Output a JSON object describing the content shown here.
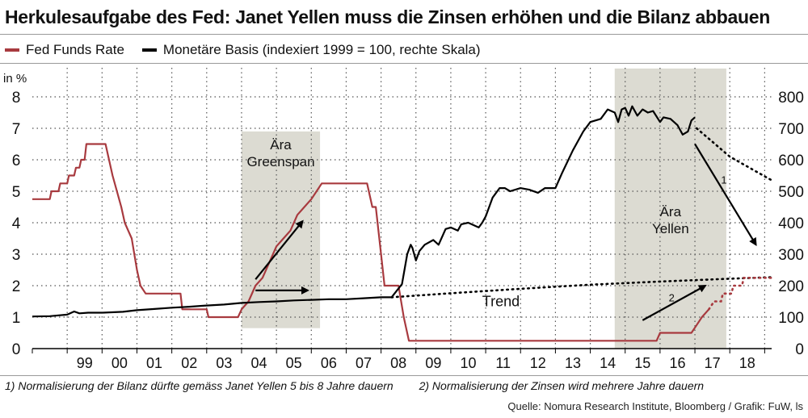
{
  "title": "Herkulesaufgabe des Fed: Janet Yellen muss die Zinsen erhöhen und die Bilanz abbauen",
  "legend": {
    "fed_funds": "Fed Funds Rate",
    "monetary_base": "Monetäre Basis (indexiert 1999 = 100, rechte Skala)"
  },
  "colors": {
    "fed_funds": "#a83a3f",
    "monetary_base": "#000000",
    "shade": "#dcdbd2"
  },
  "notes": {
    "note1": "1) Normalisierung der Bilanz dürfte gemäss Janet Yellen 5 bis 8 Jahre dauern",
    "note2": "2) Normalisierung der Zinsen wird mehrere Jahre dauern"
  },
  "source": "Quelle:  Nomura Research Institute, Bloomberg / Grafik: FuW, ls",
  "chart_data": {
    "type": "line",
    "left_axis": {
      "unit_label": "in %",
      "range": [
        0,
        8
      ],
      "ticks": [
        "0",
        "1",
        "2",
        "3",
        "4",
        "5",
        "6",
        "7",
        "8"
      ]
    },
    "right_axis": {
      "range": [
        0,
        800
      ],
      "ticks": [
        "0",
        "100",
        "200",
        "300",
        "400",
        "500",
        "600",
        "700",
        "800"
      ]
    },
    "x_axis": {
      "range": [
        1998.0,
        2019.2
      ],
      "labels": [
        "99",
        "00",
        "01",
        "02",
        "03",
        "04",
        "05",
        "06",
        "07",
        "08",
        "09",
        "10",
        "11",
        "12",
        "13",
        "14",
        "15",
        "16",
        "17",
        "18"
      ]
    },
    "shaded_periods": [
      {
        "label_line1": "Ära",
        "label_line2": "Greenspan",
        "start": 2004.0,
        "end": 2006.25,
        "bottom": 0.65,
        "top": 6.9
      },
      {
        "label_line1": "Ära",
        "label_line2": "Yellen",
        "start": 2014.7,
        "end": 2017.9,
        "bottom": 0,
        "top": 8.9
      }
    ],
    "series": [
      {
        "name": "Fed Funds Rate",
        "axis": "left",
        "points": [
          [
            1998.0,
            4.75
          ],
          [
            1998.5,
            4.75
          ],
          [
            1998.55,
            5.0
          ],
          [
            1998.75,
            5.0
          ],
          [
            1998.8,
            5.25
          ],
          [
            1999.0,
            5.25
          ],
          [
            1999.05,
            5.5
          ],
          [
            1999.2,
            5.5
          ],
          [
            1999.25,
            5.75
          ],
          [
            1999.35,
            5.75
          ],
          [
            1999.4,
            6.0
          ],
          [
            1999.5,
            6.0
          ],
          [
            1999.55,
            6.5
          ],
          [
            1999.6,
            6.5
          ],
          [
            2000.1,
            6.5
          ],
          [
            2000.3,
            5.5
          ],
          [
            2000.55,
            4.5
          ],
          [
            2000.65,
            4.0
          ],
          [
            2000.75,
            3.75
          ],
          [
            2000.85,
            3.5
          ],
          [
            2001.0,
            2.5
          ],
          [
            2001.1,
            2.0
          ],
          [
            2001.25,
            1.75
          ],
          [
            2002.25,
            1.75
          ],
          [
            2002.3,
            1.25
          ],
          [
            2003.0,
            1.25
          ],
          [
            2003.05,
            1.0
          ],
          [
            2003.9,
            1.0
          ],
          [
            2004.0,
            1.25
          ],
          [
            2004.2,
            1.5
          ],
          [
            2004.4,
            2.0
          ],
          [
            2004.6,
            2.25
          ],
          [
            2004.8,
            2.75
          ],
          [
            2005.0,
            3.25
          ],
          [
            2005.2,
            3.5
          ],
          [
            2005.4,
            3.75
          ],
          [
            2005.6,
            4.25
          ],
          [
            2005.8,
            4.5
          ],
          [
            2006.0,
            4.75
          ],
          [
            2006.15,
            5.0
          ],
          [
            2006.3,
            5.25
          ],
          [
            2007.6,
            5.25
          ],
          [
            2007.75,
            4.5
          ],
          [
            2007.85,
            4.5
          ],
          [
            2008.0,
            3.0
          ],
          [
            2008.1,
            2.0
          ],
          [
            2008.5,
            2.0
          ],
          [
            2008.65,
            1.0
          ],
          [
            2008.8,
            0.25
          ],
          [
            2015.9,
            0.25
          ],
          [
            2016.0,
            0.5
          ],
          [
            2016.9,
            0.5
          ],
          [
            2017.05,
            0.75
          ],
          [
            2017.2,
            1.0
          ],
          [
            2017.4,
            1.25
          ]
        ]
      },
      {
        "name": "Monetäre Basis",
        "axis": "right",
        "points": [
          [
            1998.0,
            102
          ],
          [
            1998.5,
            103
          ],
          [
            1999.0,
            108
          ],
          [
            1999.2,
            118
          ],
          [
            1999.35,
            112
          ],
          [
            1999.6,
            114
          ],
          [
            2000.0,
            114
          ],
          [
            2000.6,
            117
          ],
          [
            2001.0,
            122
          ],
          [
            2001.5,
            126
          ],
          [
            2002.0,
            130
          ],
          [
            2002.5,
            133
          ],
          [
            2003.0,
            137
          ],
          [
            2003.5,
            140
          ],
          [
            2004.0,
            145
          ],
          [
            2004.5,
            148
          ],
          [
            2005.0,
            150
          ],
          [
            2005.5,
            153
          ],
          [
            2006.0,
            155
          ],
          [
            2006.5,
            157
          ],
          [
            2007.0,
            157
          ],
          [
            2007.5,
            160
          ],
          [
            2008.0,
            163
          ],
          [
            2008.3,
            163
          ],
          [
            2008.6,
            205
          ],
          [
            2008.75,
            300
          ],
          [
            2008.85,
            330
          ],
          [
            2008.9,
            320
          ],
          [
            2009.0,
            280
          ],
          [
            2009.1,
            310
          ],
          [
            2009.25,
            330
          ],
          [
            2009.5,
            345
          ],
          [
            2009.65,
            330
          ],
          [
            2009.85,
            380
          ],
          [
            2010.0,
            385
          ],
          [
            2010.2,
            375
          ],
          [
            2010.3,
            395
          ],
          [
            2010.5,
            400
          ],
          [
            2010.7,
            390
          ],
          [
            2010.8,
            385
          ],
          [
            2010.9,
            400
          ],
          [
            2011.0,
            420
          ],
          [
            2011.2,
            480
          ],
          [
            2011.4,
            510
          ],
          [
            2011.55,
            510
          ],
          [
            2011.7,
            500
          ],
          [
            2012.0,
            510
          ],
          [
            2012.25,
            505
          ],
          [
            2012.5,
            495
          ],
          [
            2012.7,
            510
          ],
          [
            2013.0,
            510
          ],
          [
            2013.2,
            560
          ],
          [
            2013.5,
            630
          ],
          [
            2013.8,
            690
          ],
          [
            2014.0,
            720
          ],
          [
            2014.3,
            730
          ],
          [
            2014.5,
            760
          ],
          [
            2014.7,
            750
          ],
          [
            2014.8,
            720
          ],
          [
            2014.9,
            760
          ],
          [
            2015.0,
            765
          ],
          [
            2015.1,
            740
          ],
          [
            2015.2,
            770
          ],
          [
            2015.35,
            740
          ],
          [
            2015.5,
            760
          ],
          [
            2015.65,
            750
          ],
          [
            2015.8,
            755
          ],
          [
            2016.0,
            720
          ],
          [
            2016.1,
            735
          ],
          [
            2016.3,
            730
          ],
          [
            2016.5,
            710
          ],
          [
            2016.65,
            680
          ],
          [
            2016.8,
            690
          ],
          [
            2016.9,
            725
          ],
          [
            2017.0,
            735
          ]
        ]
      }
    ],
    "projections": [
      {
        "name": "Monetäre Basis projection",
        "axis": "right",
        "style": "dotted",
        "points": [
          [
            2017.05,
            700
          ],
          [
            2018.0,
            610
          ],
          [
            2019.2,
            535
          ]
        ]
      },
      {
        "name": "Trend",
        "axis": "right",
        "style": "dotted",
        "points": [
          [
            2008.3,
            163
          ],
          [
            2010.0,
            176
          ],
          [
            2012.0,
            190
          ],
          [
            2014.0,
            203
          ],
          [
            2016.0,
            213
          ],
          [
            2018.0,
            222
          ],
          [
            2019.2,
            227
          ]
        ]
      },
      {
        "name": "Fed Funds projection",
        "axis": "left",
        "style": "dotted",
        "points": [
          [
            2017.4,
            1.25
          ],
          [
            2017.55,
            1.5
          ],
          [
            2017.75,
            1.5
          ],
          [
            2017.8,
            1.75
          ],
          [
            2018.05,
            1.75
          ],
          [
            2018.1,
            2.0
          ],
          [
            2018.35,
            2.0
          ],
          [
            2018.4,
            2.25
          ],
          [
            2019.2,
            2.25
          ]
        ]
      }
    ],
    "annotations": {
      "trend_label": "Trend",
      "arrow1_label": "1",
      "arrow2_label": "2"
    }
  }
}
